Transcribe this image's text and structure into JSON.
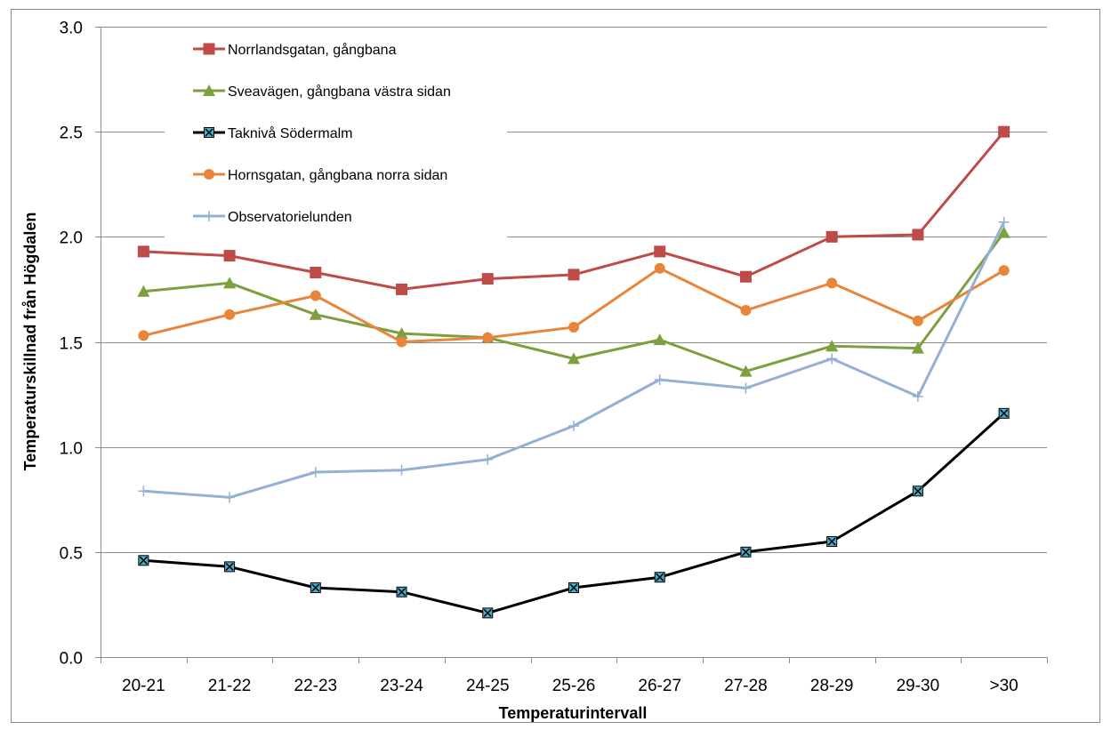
{
  "chart_data": {
    "type": "line",
    "xlabel": "Temperaturintervall",
    "ylabel": "Temperaturskillnad från Högdalen",
    "ylim": [
      0.0,
      3.0
    ],
    "yticks": [
      "0.0",
      "0.5",
      "1.0",
      "1.5",
      "2.0",
      "2.5",
      "3.0"
    ],
    "grid": true,
    "legend_position": "top-left",
    "categories": [
      "20-21",
      "21-22",
      "22-23",
      "23-24",
      "24-25",
      "25-26",
      "26-27",
      "27-28",
      "28-29",
      "29-30",
      ">30"
    ],
    "series": [
      {
        "name": "Norrlandsgatan, gångbana",
        "color": "#be4b48",
        "marker": "square",
        "values": [
          1.93,
          1.91,
          1.83,
          1.75,
          1.8,
          1.82,
          1.93,
          1.81,
          2.0,
          2.01,
          2.5
        ]
      },
      {
        "name": "Sveavägen, gångbana västra sidan",
        "color": "#7e9f3e",
        "marker": "triangle",
        "values": [
          1.74,
          1.78,
          1.63,
          1.54,
          1.52,
          1.42,
          1.51,
          1.36,
          1.48,
          1.47,
          2.02
        ]
      },
      {
        "name": "Taknivå Södermalm",
        "color": "#000000",
        "marker": "x-square",
        "marker_fill": "#4bacc6",
        "values": [
          0.46,
          0.43,
          0.33,
          0.31,
          0.21,
          0.33,
          0.38,
          0.5,
          0.55,
          0.79,
          1.16
        ]
      },
      {
        "name": "Hornsgatan, gångbana norra sidan",
        "color": "#e8853a",
        "marker": "circle",
        "values": [
          1.53,
          1.63,
          1.72,
          1.5,
          1.52,
          1.57,
          1.85,
          1.65,
          1.78,
          1.6,
          1.84
        ]
      },
      {
        "name": "Observatorielunden",
        "color": "#95b0d6",
        "marker": "plus",
        "values": [
          0.79,
          0.76,
          0.88,
          0.89,
          0.94,
          1.1,
          1.32,
          1.28,
          1.42,
          1.24,
          2.07
        ]
      }
    ]
  }
}
